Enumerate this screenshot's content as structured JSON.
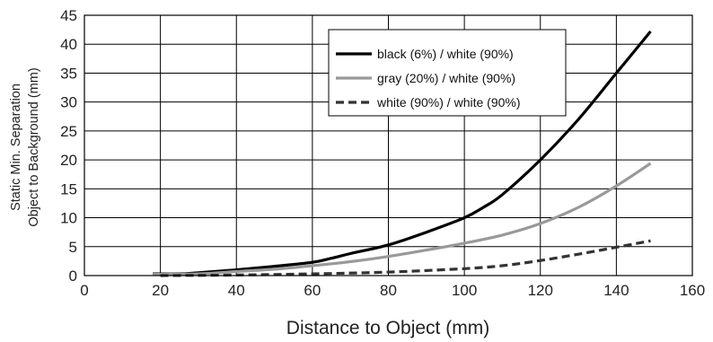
{
  "chart_data": {
    "type": "line",
    "xlabel": "Distance to Object (mm)",
    "ylabel_line1": "Static Min. Separation",
    "ylabel_line2": "Object to Background (mm)",
    "xlim": [
      0,
      160
    ],
    "ylim": [
      0,
      45
    ],
    "xticks": [
      0,
      20,
      40,
      60,
      80,
      100,
      120,
      140,
      160
    ],
    "yticks": [
      0,
      5,
      10,
      15,
      20,
      25,
      30,
      35,
      40,
      45
    ],
    "grid": true,
    "legend_position": "top-right",
    "series": [
      {
        "name": "black (6%) / white (90%)",
        "color": "#000000",
        "dash": "solid",
        "x": [
          18,
          25,
          30,
          40,
          50,
          60,
          65,
          70,
          80,
          90,
          100,
          105,
          110,
          120,
          130,
          140,
          149
        ],
        "y": [
          0.3,
          0.3,
          0.5,
          1.0,
          1.6,
          2.3,
          3.0,
          3.8,
          5.3,
          7.5,
          10.0,
          11.8,
          14.0,
          20.0,
          27.0,
          35.0,
          42.2
        ]
      },
      {
        "name": "gray (20%) / white (90%)",
        "color": "#999999",
        "dash": "solid",
        "x": [
          18,
          30,
          40,
          50,
          60,
          70,
          80,
          90,
          100,
          110,
          120,
          130,
          140,
          149
        ],
        "y": [
          0.2,
          0.3,
          0.7,
          1.1,
          1.7,
          2.4,
          3.3,
          4.4,
          5.6,
          7.0,
          9.0,
          11.8,
          15.5,
          19.4
        ]
      },
      {
        "name": "white (90%) / white (90%)",
        "color": "#333333",
        "dash": "dashed",
        "x": [
          20,
          40,
          60,
          80,
          100,
          110,
          120,
          130,
          140,
          149
        ],
        "y": [
          0.0,
          0.1,
          0.3,
          0.6,
          1.2,
          1.7,
          2.6,
          3.7,
          4.9,
          6.0
        ]
      }
    ]
  }
}
